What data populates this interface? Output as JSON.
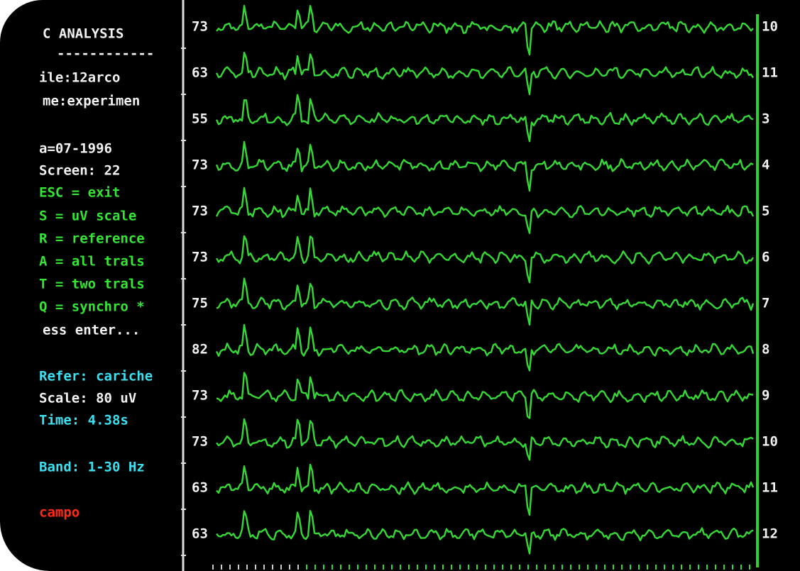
{
  "panel": {
    "title": "C ANALYSIS",
    "separator": "------------",
    "lines": [
      "ile:12arco",
      "me:experimen",
      "a=07-1996",
      "Screen: 22",
      "ESC = exit",
      "S = uV scale",
      "R = reference",
      "A = all trals",
      "T = two trals",
      "Q = synchro *",
      "ess enter...",
      "Refer: cariche",
      "Scale: 80 uV",
      "Time: 4.38s",
      "Band: 1-30 Hz",
      "campo"
    ]
  },
  "channels": [
    {
      "left": "73",
      "right": "10"
    },
    {
      "left": "63",
      "right": "11"
    },
    {
      "left": "55",
      "right": "3"
    },
    {
      "left": "73",
      "right": "4"
    },
    {
      "left": "73",
      "right": "5"
    },
    {
      "left": "73",
      "right": "6"
    },
    {
      "left": "75",
      "right": "7"
    },
    {
      "left": "82",
      "right": "8"
    },
    {
      "left": "73",
      "right": "9"
    },
    {
      "left": "73",
      "right": "10"
    },
    {
      "left": "63",
      "right": "11"
    },
    {
      "left": "63",
      "right": "12"
    }
  ]
}
